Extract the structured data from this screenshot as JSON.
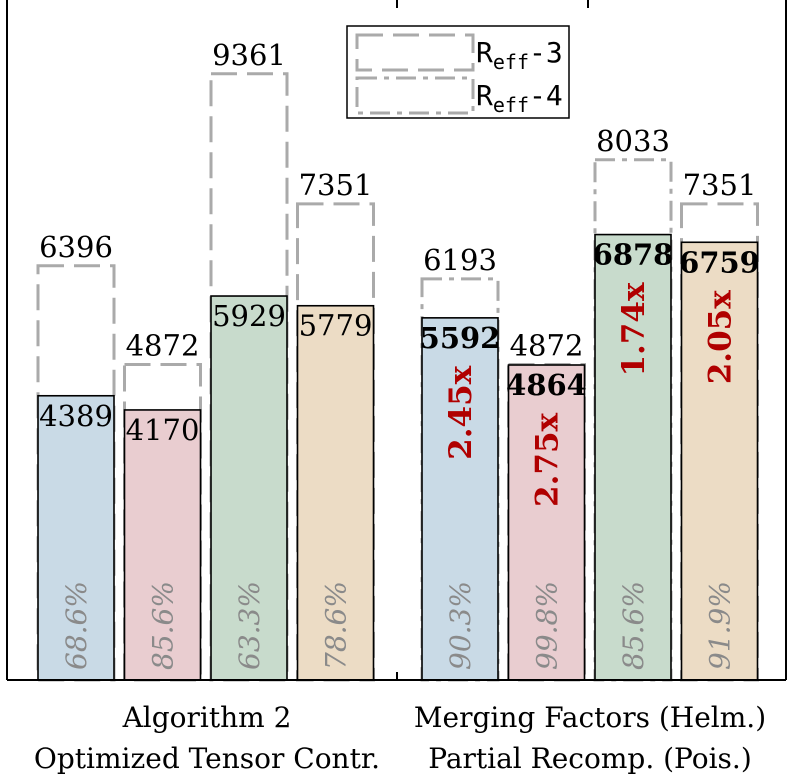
{
  "chart_data": {
    "type": "bar",
    "ylim": [
      0,
      10500
    ],
    "grid": false,
    "legend": {
      "placement": "top-center",
      "entries": [
        {
          "label": "R",
          "sub": "eff",
          "suffix": "-3",
          "style": "dashed"
        },
        {
          "label": "R",
          "sub": "eff",
          "suffix": "-4",
          "style": "dashdot"
        }
      ]
    },
    "groups": [
      {
        "labels": [
          "Algorithm 2",
          "Optimized Tensor Contr."
        ],
        "bars": [
          {
            "value": 4389,
            "value_label": "4389",
            "bold": false,
            "ref": 6396,
            "ref_label": "6396",
            "ref_style": "dashed",
            "percent": "68.6%",
            "speedup": "",
            "color": "#c9dae6"
          },
          {
            "value": 4170,
            "value_label": "4170",
            "bold": false,
            "ref": 4872,
            "ref_label": "4872",
            "ref_style": "dashed",
            "percent": "85.6%",
            "speedup": "",
            "color": "#e9cdd0"
          },
          {
            "value": 5929,
            "value_label": "5929",
            "bold": false,
            "ref": 9361,
            "ref_label": "9361",
            "ref_style": "dashed",
            "percent": "63.3%",
            "speedup": "",
            "color": "#c8dbcc"
          },
          {
            "value": 5779,
            "value_label": "5779",
            "bold": false,
            "ref": 7351,
            "ref_label": "7351",
            "ref_style": "dashed",
            "percent": "78.6%",
            "speedup": "",
            "color": "#ecdcc5"
          }
        ]
      },
      {
        "labels": [
          "Merging Factors (Helm.)",
          "Partial Recomp. (Pois.)"
        ],
        "bars": [
          {
            "value": 5592,
            "value_label": "5592",
            "bold": true,
            "ref": 6193,
            "ref_label": "6193",
            "ref_style": "dashdot",
            "percent": "90.3%",
            "speedup": "2.45x",
            "color": "#c9dae6"
          },
          {
            "value": 4864,
            "value_label": "4864",
            "bold": true,
            "ref": 4872,
            "ref_label": "4872",
            "ref_style": "dashed",
            "percent": "99.8%",
            "speedup": "2.75x",
            "color": "#e9cdd0"
          },
          {
            "value": 6878,
            "value_label": "6878",
            "bold": true,
            "ref": 8033,
            "ref_label": "8033",
            "ref_style": "dashdot",
            "percent": "85.6%",
            "speedup": "1.74x",
            "color": "#c8dbcc"
          },
          {
            "value": 6759,
            "value_label": "6759",
            "bold": true,
            "ref": 7351,
            "ref_label": "7351",
            "ref_style": "dashed",
            "percent": "91.9%",
            "speedup": "2.05x",
            "color": "#ecdcc5"
          }
        ]
      }
    ]
  }
}
